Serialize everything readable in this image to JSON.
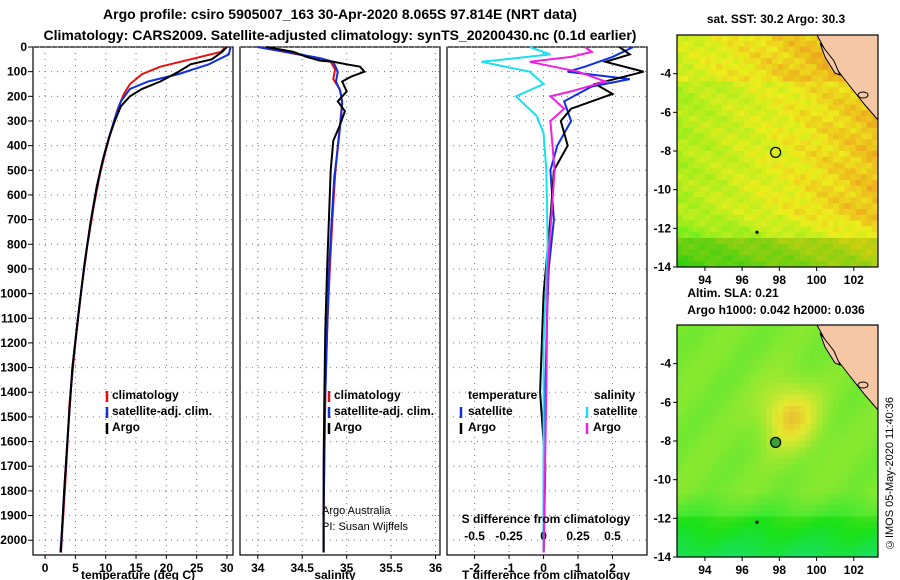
{
  "header": {
    "title_line1": "Argo profile: csiro 5905007_163 30-Apr-2020 8.065S 97.814E (NRT data)",
    "title_line2": "Climatology: CARS2009. Satellite-adjusted climatology: synTS_20200430.nc (0.1d earlier)"
  },
  "colors": {
    "climatology": "#e8100c",
    "satellite": "#1030e0",
    "argo": "#000000",
    "sat_salinity": "#18e0f0",
    "argo_salinity": "#f020e0"
  },
  "chart_data": [
    {
      "type": "line",
      "name": "temperature",
      "xlabel": "temperature (deg C)",
      "xlim": [
        -2,
        31
      ],
      "xticks": [
        0,
        5,
        10,
        15,
        20,
        25,
        30
      ],
      "ylim": [
        2060,
        0
      ],
      "yticks": [
        0,
        100,
        200,
        300,
        400,
        500,
        600,
        700,
        800,
        900,
        1000,
        1100,
        1200,
        1300,
        1400,
        1500,
        1600,
        1700,
        1800,
        1900,
        2000
      ],
      "legend": [
        "climatology",
        "satellite-adj. clim.",
        "Argo"
      ],
      "series": [
        {
          "name": "climatology",
          "color": "#e8100c",
          "x": [
            29.7,
            29.0,
            24,
            19,
            16,
            14,
            13,
            12,
            11,
            10,
            9,
            8,
            7,
            6,
            5,
            4,
            3.5,
            3,
            2.6
          ],
          "y": [
            0,
            20,
            50,
            80,
            110,
            150,
            190,
            250,
            330,
            420,
            520,
            650,
            800,
            980,
            1200,
            1450,
            1700,
            1900,
            2050
          ]
        },
        {
          "name": "satellite-adj. clim.",
          "color": "#1030e0",
          "x": [
            30.6,
            30.3,
            27,
            22,
            17,
            14,
            12.5,
            11.5,
            10.5,
            9.5,
            8.5,
            7.5,
            6.5,
            5.5,
            4.5,
            3.8,
            3.2,
            2.8,
            2.5
          ],
          "y": [
            0,
            30,
            70,
            110,
            140,
            170,
            220,
            290,
            370,
            460,
            570,
            710,
            880,
            1080,
            1300,
            1550,
            1780,
            1950,
            2050
          ]
        },
        {
          "name": "Argo",
          "color": "#000000",
          "x": [
            30.0,
            29.2,
            27.5,
            24,
            22,
            19,
            16,
            14,
            12.5,
            11.5,
            10.5,
            9.5,
            8.5,
            7.5,
            6.5,
            5.5,
            4.5,
            3.8,
            3.2,
            2.8,
            2.6
          ],
          "y": [
            0,
            20,
            50,
            70,
            100,
            140,
            170,
            200,
            240,
            300,
            370,
            460,
            570,
            710,
            880,
            1080,
            1300,
            1550,
            1780,
            1950,
            2050
          ]
        }
      ]
    },
    {
      "type": "line",
      "name": "salinity",
      "xlabel": "salinity",
      "xlim": [
        33.8,
        36.05
      ],
      "xticks": [
        34,
        34.5,
        35,
        35.5,
        36
      ],
      "xticklabels": [
        "34",
        "34.5",
        "35",
        "35.5",
        "36"
      ],
      "ylim": [
        2060,
        0
      ],
      "legend": [
        "climatology",
        "satellite-adj. clim.",
        "Argo"
      ],
      "credit_line1": "Argo Australia",
      "credit_line2": "PI: Susan Wijffels",
      "series": [
        {
          "name": "climatology",
          "color": "#e8100c",
          "x": [
            34.0,
            34.3,
            34.6,
            34.82,
            34.87,
            34.85,
            34.92,
            34.95,
            34.93,
            34.9,
            34.87,
            34.84,
            34.81,
            34.78,
            34.76,
            34.75,
            34.74,
            34.74
          ],
          "y": [
            0,
            20,
            40,
            60,
            90,
            130,
            170,
            220,
            300,
            400,
            520,
            700,
            900,
            1150,
            1400,
            1650,
            1900,
            2050
          ]
        },
        {
          "name": "satellite-adj. clim.",
          "color": "#1030e0",
          "x": [
            34.0,
            34.4,
            34.7,
            34.85,
            34.9,
            34.88,
            34.93,
            34.95,
            34.93,
            34.9,
            34.86,
            34.83,
            34.8,
            34.78,
            34.76,
            34.75,
            34.74,
            34.74
          ],
          "y": [
            0,
            25,
            45,
            60,
            100,
            140,
            180,
            230,
            310,
            410,
            530,
            710,
            910,
            1160,
            1410,
            1660,
            1910,
            2050
          ]
        },
        {
          "name": "Argo",
          "color": "#000000",
          "x": [
            34.1,
            34.4,
            34.55,
            34.7,
            34.85,
            35.0,
            35.15,
            35.2,
            35.05,
            34.95,
            35.0,
            34.9,
            34.98,
            34.92,
            34.85,
            34.82,
            34.8,
            34.78,
            34.76,
            34.75,
            34.74,
            34.74
          ],
          "y": [
            0,
            20,
            40,
            55,
            60,
            70,
            80,
            100,
            120,
            140,
            180,
            220,
            260,
            320,
            380,
            500,
            700,
            900,
            1150,
            1400,
            1700,
            2050
          ]
        }
      ]
    },
    {
      "type": "line",
      "name": "difference",
      "xlabel": "T difference from climatology",
      "xlim": [
        -2.8,
        3.0
      ],
      "xticks": [
        -2,
        -1,
        0,
        1,
        2
      ],
      "sxlabel": "S difference from climatology",
      "sxticks": [
        -0.5,
        -0.25,
        0,
        0.25,
        0.5
      ],
      "ylim": [
        2060,
        0
      ],
      "legend_temperature_title": "temperature",
      "legend_salinity_title": "salinity",
      "legend_temperature": [
        "satellite",
        "Argo"
      ],
      "legend_salinity": [
        "satellite",
        "Argo"
      ],
      "series": [
        {
          "name": "T satellite",
          "color": "#1030e0",
          "x": [
            2.6,
            2.0,
            1.2,
            0.7,
            2.5,
            1.4,
            0.6,
            0.8,
            0.4,
            0.2,
            0.3,
            0.15,
            0.1,
            0.05,
            0.0,
            0.0
          ],
          "y": [
            0,
            40,
            80,
            100,
            130,
            160,
            220,
            300,
            400,
            500,
            700,
            900,
            1100,
            1400,
            1700,
            2050
          ]
        },
        {
          "name": "T Argo",
          "color": "#000000",
          "x": [
            2.2,
            2.5,
            1.8,
            2.9,
            1.5,
            2.0,
            0.8,
            0.5,
            0.7,
            0.3,
            0.2,
            0.0,
            -0.1,
            0.05,
            0.0
          ],
          "y": [
            0,
            30,
            60,
            100,
            150,
            190,
            250,
            300,
            400,
            500,
            700,
            1000,
            1400,
            1700,
            2050
          ]
        },
        {
          "name": "S satellite",
          "color": "#18e0f0",
          "x": [
            -0.1,
            0.05,
            -0.45,
            -0.1,
            0.0,
            -0.2,
            -0.05,
            0.0,
            0.02,
            0.03,
            0.0,
            0.0
          ],
          "y": [
            0,
            30,
            60,
            100,
            150,
            200,
            280,
            350,
            500,
            800,
            1200,
            2050
          ]
        },
        {
          "name": "S Argo",
          "color": "#f020e0",
          "x": [
            0.3,
            0.35,
            0.2,
            -0.1,
            0.25,
            0.45,
            0.2,
            0.05,
            0.15,
            0.05,
            0.08,
            0.03,
            0.02,
            0.0
          ],
          "y": [
            0,
            20,
            40,
            60,
            100,
            140,
            180,
            200,
            250,
            300,
            500,
            900,
            1400,
            2050
          ]
        }
      ]
    },
    {
      "type": "heatmap",
      "name": "sst-map",
      "title": "sat. SST: 30.2 Argo: 30.3",
      "xlim": [
        92.5,
        103.3
      ],
      "ylim": [
        -14,
        -2
      ],
      "xticks": [
        94,
        96,
        98,
        100,
        102
      ],
      "yticks": [
        -4,
        -6,
        -8,
        -10,
        -12,
        -14
      ],
      "argo_position": {
        "lon": 97.8,
        "lat": -8.07
      },
      "marker_dot": {
        "lon": 96.8,
        "lat": -12.2
      }
    },
    {
      "type": "heatmap",
      "name": "sla-map",
      "title_line1": "Altim. SLA: 0.21",
      "title_line2": "Argo h1000: 0.042 h2000: 0.036",
      "xlim": [
        92.5,
        103.3
      ],
      "ylim": [
        -14,
        -2
      ],
      "xticks": [
        94,
        96,
        98,
        100,
        102
      ],
      "yticks": [
        -4,
        -6,
        -8,
        -10,
        -12,
        -14
      ],
      "argo_position": {
        "lon": 97.8,
        "lat": -8.07
      },
      "marker_dot": {
        "lon": 96.8,
        "lat": -12.2
      }
    }
  ],
  "footer": {
    "stamp": "©IMOS 05-May-2020 11:40:36"
  }
}
